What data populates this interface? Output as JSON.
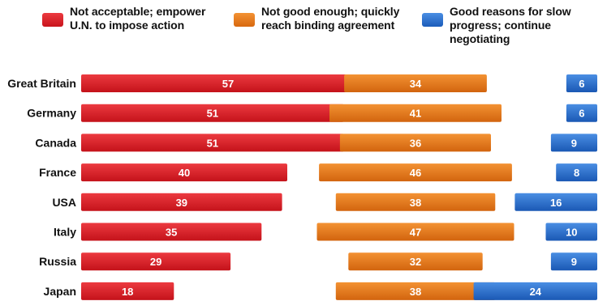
{
  "chart_data": {
    "type": "bar",
    "stacked": true,
    "orientation": "horizontal",
    "categories": [
      "Great Britain",
      "Germany",
      "Canada",
      "France",
      "USA",
      "Italy",
      "Russia",
      "Japan"
    ],
    "series": [
      {
        "name": "Not acceptable; empower\nU.N. to impose action",
        "color": "#d41c24",
        "values": [
          57,
          51,
          51,
          40,
          39,
          35,
          29,
          18
        ]
      },
      {
        "name": "Not good enough; quickly\nreach binding agreement",
        "color": "#e0721a",
        "values": [
          34,
          41,
          36,
          46,
          38,
          47,
          32,
          38
        ]
      },
      {
        "name": "Good reasons for slow\nprogress; continue negotiating",
        "color": "#2168c9",
        "values": [
          6,
          6,
          9,
          8,
          16,
          10,
          9,
          24
        ]
      }
    ],
    "legend_position": "top",
    "grid": false
  }
}
